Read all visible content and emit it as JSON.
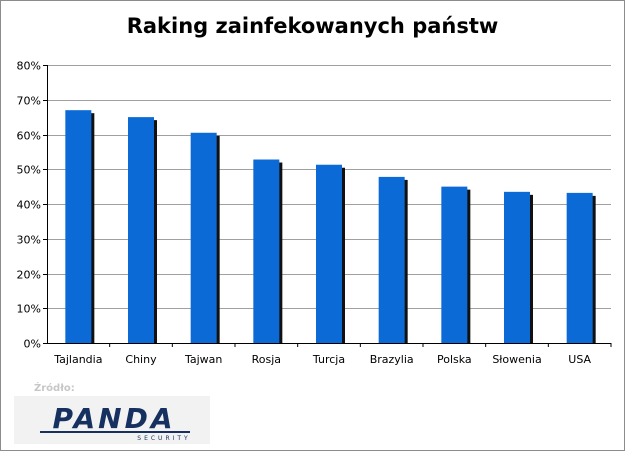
{
  "chart_data": {
    "type": "bar",
    "title": "Raking zainfekowanych państw",
    "categories": [
      "Tajlandia",
      "Chiny",
      "Tajwan",
      "Rosja",
      "Turcja",
      "Brazylia",
      "Polska",
      "Słowenia",
      "USA"
    ],
    "values": [
      67,
      65,
      60.5,
      52.8,
      51.3,
      47.8,
      45,
      43.5,
      43.2
    ],
    "yticks": [
      "0%",
      "10%",
      "20%",
      "30%",
      "40%",
      "50%",
      "60%",
      "70%",
      "80%"
    ],
    "ylim": [
      0,
      80
    ],
    "grid": true,
    "colors": {
      "bar": "#0b6ad6",
      "bar_shadow": "#111111",
      "grid": "#a0a0a0",
      "axis": "#000000"
    }
  },
  "source": {
    "label": "Źródło:",
    "logo_text": "PANDA",
    "logo_subtext": "SECURITY",
    "logo_color": "#16305f"
  }
}
